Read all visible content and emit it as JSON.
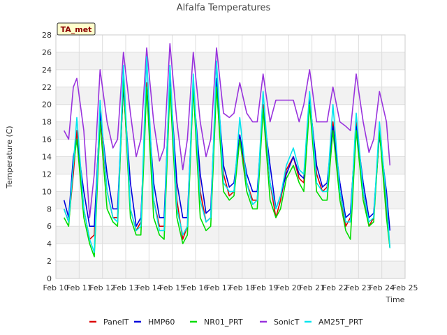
{
  "chart_data": {
    "type": "line",
    "title": "Alfalfa Temperatures",
    "xlabel": "Time",
    "ylabel": "Temperature (C)",
    "badge": "TA_met",
    "ylim": [
      0,
      28
    ],
    "yticks": [
      0,
      2,
      4,
      6,
      8,
      10,
      12,
      14,
      16,
      18,
      20,
      22,
      24,
      26,
      28
    ],
    "xlim": [
      10,
      25
    ],
    "xticks": [
      {
        "v": 10,
        "label": "Feb 10"
      },
      {
        "v": 11,
        "label": "Feb 11"
      },
      {
        "v": 12,
        "label": "Feb 12"
      },
      {
        "v": 13,
        "label": "Feb 13"
      },
      {
        "v": 14,
        "label": "Feb 14"
      },
      {
        "v": 15,
        "label": "Feb 15"
      },
      {
        "v": 16,
        "label": "Feb 16"
      },
      {
        "v": 17,
        "label": "Feb 17"
      },
      {
        "v": 18,
        "label": "Feb 18"
      },
      {
        "v": 19,
        "label": "Feb 19"
      },
      {
        "v": 20,
        "label": "Feb 20"
      },
      {
        "v": 21,
        "label": "Feb 21"
      },
      {
        "v": 22,
        "label": "Feb 22"
      },
      {
        "v": 23,
        "label": "Feb 23"
      },
      {
        "v": 24,
        "label": "Feb 24"
      },
      {
        "v": 25,
        "label": "Feb 25"
      }
    ],
    "grid": true,
    "legend_position": "bottom",
    "x_unit": "day of February",
    "series": [
      {
        "name": "PanelT",
        "color": "#dd0000",
        "x": [
          10.35,
          10.55,
          10.75,
          10.9,
          11.2,
          11.45,
          11.65,
          11.9,
          12.2,
          12.45,
          12.65,
          12.9,
          13.2,
          13.45,
          13.65,
          13.9,
          14.2,
          14.45,
          14.65,
          14.9,
          15.2,
          15.45,
          15.65,
          15.9,
          16.2,
          16.45,
          16.65,
          16.9,
          17.2,
          17.45,
          17.65,
          17.9,
          18.2,
          18.45,
          18.65,
          18.9,
          19.2,
          19.45,
          19.65,
          19.9,
          20.2,
          20.45,
          20.65,
          20.9,
          21.2,
          21.45,
          21.65,
          21.9,
          22.2,
          22.45,
          22.65,
          22.9,
          23.2,
          23.45,
          23.65,
          23.9,
          24.2,
          24.35
        ],
        "y": [
          8,
          6.5,
          12,
          17,
          8,
          4.5,
          5,
          19.5,
          10,
          7,
          7,
          22.5,
          8,
          5.5,
          6.5,
          22.5,
          9,
          6,
          6,
          23,
          9,
          4.5,
          6,
          22.5,
          10,
          6.5,
          7,
          23,
          12,
          9.5,
          10,
          16.5,
          11,
          9,
          9,
          20,
          11,
          7,
          9,
          12.5,
          14,
          11.5,
          11,
          21,
          12,
          10,
          10.5,
          18,
          10,
          6,
          7,
          18,
          10,
          6,
          7,
          17,
          8,
          3.5
        ]
      },
      {
        "name": "HMP60",
        "color": "#0000dd",
        "x": [
          10.35,
          10.55,
          10.75,
          10.9,
          11.2,
          11.45,
          11.65,
          11.9,
          12.2,
          12.45,
          12.65,
          12.9,
          13.2,
          13.45,
          13.65,
          13.9,
          14.2,
          14.45,
          14.65,
          14.9,
          15.2,
          15.45,
          15.65,
          15.9,
          16.2,
          16.45,
          16.65,
          16.9,
          17.2,
          17.45,
          17.65,
          17.9,
          18.2,
          18.45,
          18.65,
          18.9,
          19.2,
          19.45,
          19.65,
          19.9,
          20.2,
          20.45,
          20.65,
          20.9,
          21.2,
          21.45,
          21.65,
          21.9,
          22.2,
          22.45,
          22.65,
          22.9,
          23.2,
          23.45,
          23.65,
          23.9,
          24.2,
          24.35
        ],
        "y": [
          9,
          7,
          14,
          16,
          10,
          6,
          6,
          19,
          12,
          8,
          8,
          22,
          11,
          6,
          7,
          22,
          11,
          7,
          7,
          23,
          11,
          7,
          7,
          22,
          12,
          7.5,
          8,
          23,
          13,
          10.5,
          11,
          16.5,
          12,
          10,
          10,
          19.5,
          13,
          8,
          9.5,
          12,
          14,
          12,
          11.5,
          20.5,
          13,
          10.5,
          11,
          17.5,
          11,
          7,
          7.5,
          17.5,
          11,
          7,
          7.5,
          16.5,
          10,
          5.5
        ]
      },
      {
        "name": "NR01_PRT",
        "color": "#00dd00",
        "x": [
          10.35,
          10.55,
          10.75,
          10.9,
          11.2,
          11.45,
          11.65,
          11.9,
          12.2,
          12.45,
          12.65,
          12.9,
          13.2,
          13.45,
          13.65,
          13.9,
          14.2,
          14.45,
          14.65,
          14.9,
          15.2,
          15.45,
          15.65,
          15.9,
          16.2,
          16.45,
          16.65,
          16.9,
          17.2,
          17.45,
          17.65,
          17.9,
          18.2,
          18.45,
          18.65,
          18.9,
          19.2,
          19.45,
          19.65,
          19.9,
          20.2,
          20.45,
          20.65,
          20.9,
          21.2,
          21.45,
          21.65,
          21.9,
          22.2,
          22.45,
          22.65,
          22.9,
          23.2,
          23.45,
          23.65,
          23.9,
          24.2,
          24.35
        ],
        "y": [
          7,
          6,
          13,
          16,
          7,
          4,
          2.5,
          18,
          8,
          6.5,
          6,
          23,
          7,
          5,
          5,
          22,
          7,
          5,
          4.5,
          22,
          7,
          4,
          5,
          22,
          7,
          5.5,
          6,
          22,
          10,
          9,
          9.5,
          16,
          10,
          8,
          8,
          19.5,
          9,
          7,
          8,
          11.5,
          13,
          11,
          10,
          20,
          10,
          9,
          9,
          17,
          9,
          5.5,
          4.5,
          17,
          9,
          6,
          6.5,
          17,
          7,
          3.5
        ]
      },
      {
        "name": "SonicT",
        "color": "#9933dd",
        "x": [
          10.35,
          10.55,
          10.75,
          10.9,
          11.2,
          11.45,
          11.65,
          11.9,
          12.2,
          12.45,
          12.65,
          12.9,
          13.2,
          13.45,
          13.65,
          13.9,
          14.2,
          14.45,
          14.65,
          14.9,
          15.2,
          15.45,
          15.65,
          15.9,
          16.2,
          16.45,
          16.65,
          16.9,
          17.2,
          17.45,
          17.65,
          17.9,
          18.2,
          18.45,
          18.65,
          18.9,
          19.2,
          19.45,
          19.65,
          19.9,
          20.2,
          20.45,
          20.65,
          20.9,
          21.2,
          21.45,
          21.65,
          21.9,
          22.2,
          22.45,
          22.65,
          22.9,
          23.2,
          23.45,
          23.65,
          23.9,
          24.2,
          24.35
        ],
        "y": [
          17,
          16,
          22,
          23,
          17,
          7,
          12,
          24,
          18,
          15,
          16,
          26,
          19,
          14,
          16,
          26.5,
          18,
          13.5,
          15,
          27,
          18,
          12.5,
          16,
          26,
          18,
          14,
          16,
          26.5,
          19,
          18.5,
          19,
          22.5,
          19,
          18,
          18,
          23.5,
          18,
          20.5,
          20.5,
          20.5,
          20.5,
          18,
          20,
          24,
          18,
          18,
          18,
          22,
          18,
          17.5,
          17,
          23.5,
          18,
          14.5,
          16,
          21.5,
          18,
          13
        ]
      },
      {
        "name": "AM25T_PRT",
        "color": "#00e5ee",
        "x": [
          10.35,
          10.55,
          10.75,
          10.9,
          11.2,
          11.45,
          11.65,
          11.9,
          12.2,
          12.45,
          12.65,
          12.9,
          13.2,
          13.45,
          13.65,
          13.9,
          14.2,
          14.45,
          14.65,
          14.9,
          15.2,
          15.45,
          15.65,
          15.9,
          16.2,
          16.45,
          16.65,
          16.9,
          17.2,
          17.45,
          17.65,
          17.9,
          18.2,
          18.45,
          18.65,
          18.9,
          19.2,
          19.45,
          19.65,
          19.9,
          20.2,
          20.45,
          20.65,
          20.9,
          21.2,
          21.45,
          21.65,
          21.9,
          22.2,
          22.45,
          22.65,
          22.9,
          23.2,
          23.45,
          23.65,
          23.9,
          24.2,
          24.35
        ],
        "y": [
          8,
          6.5,
          13,
          18.5,
          8,
          4.5,
          3,
          20.5,
          10,
          7,
          6.5,
          24.5,
          8,
          5.5,
          6,
          25.5,
          9,
          5.5,
          5.5,
          24.5,
          8,
          5,
          6,
          23.5,
          9,
          6.5,
          7,
          25,
          11,
          10,
          10,
          18.5,
          11,
          8.5,
          9,
          21.5,
          11,
          8,
          9.5,
          13,
          15,
          12.5,
          12,
          21.5,
          11,
          10,
          10,
          20,
          10,
          6.5,
          6.5,
          19,
          10,
          6.5,
          7,
          18,
          9,
          3.5
        ]
      }
    ]
  }
}
